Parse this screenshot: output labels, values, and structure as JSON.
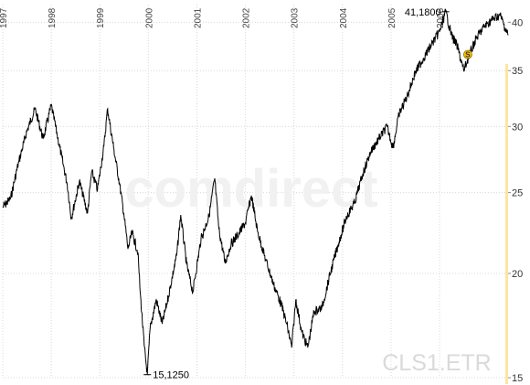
{
  "chart_data": {
    "type": "line",
    "title": "",
    "xlabel": "",
    "ylabel": "",
    "y_scale": "log",
    "ylim": [
      15,
      42
    ],
    "x_range": [
      "1997-01-01",
      "2007-05-31"
    ],
    "y_ticks": [
      15,
      20,
      25,
      30,
      35,
      40
    ],
    "x_tick_labels": [
      "1997",
      "1998",
      "1999",
      "2000",
      "2001",
      "2002",
      "2003",
      "2004",
      "2005",
      "2006"
    ],
    "grid": true,
    "series": [
      {
        "name": "",
        "color": "#000000",
        "points": [
          [
            "1997-01-01",
            24.0
          ],
          [
            "1997-03-01",
            24.6
          ],
          [
            "1997-05-01",
            27.2
          ],
          [
            "1997-07-01",
            29.6
          ],
          [
            "1997-09-01",
            31.5
          ],
          [
            "1997-11-01",
            29.0
          ],
          [
            "1998-01-01",
            31.8
          ],
          [
            "1998-02-15",
            29.3
          ],
          [
            "1998-04-01",
            27.0
          ],
          [
            "1998-05-01",
            25.6
          ],
          [
            "1998-06-01",
            23.3
          ],
          [
            "1998-08-01",
            25.8
          ],
          [
            "1998-10-01",
            23.6
          ],
          [
            "1998-11-01",
            26.5
          ],
          [
            "1998-12-15",
            25.2
          ],
          [
            "1999-02-01",
            28.4
          ],
          [
            "1999-03-01",
            31.5
          ],
          [
            "1999-04-15",
            28.3
          ],
          [
            "1999-06-01",
            25.5
          ],
          [
            "1999-07-01",
            23.6
          ],
          [
            "1999-08-01",
            21.4
          ],
          [
            "1999-09-01",
            22.4
          ],
          [
            "1999-10-15",
            21.2
          ],
          [
            "1999-11-01",
            19.0
          ],
          [
            "1999-12-01",
            16.4
          ],
          [
            "1999-12-25",
            15.125
          ],
          [
            "2000-01-15",
            17.2
          ],
          [
            "2000-03-01",
            18.6
          ],
          [
            "2000-04-15",
            17.4
          ],
          [
            "2000-06-01",
            18.8
          ],
          [
            "2000-08-01",
            21.0
          ],
          [
            "2000-09-01",
            23.5
          ],
          [
            "2000-10-15",
            20.5
          ],
          [
            "2000-12-01",
            19.0
          ],
          [
            "2001-02-01",
            22.0
          ],
          [
            "2001-04-01",
            23.4
          ],
          [
            "2001-05-15",
            26.0
          ],
          [
            "2001-06-15",
            22.6
          ],
          [
            "2001-08-01",
            20.6
          ],
          [
            "2001-09-15",
            21.7
          ],
          [
            "2001-11-01",
            22.2
          ],
          [
            "2002-01-01",
            23.0
          ],
          [
            "2002-02-15",
            24.8
          ],
          [
            "2002-04-01",
            22.5
          ],
          [
            "2002-06-01",
            20.8
          ],
          [
            "2002-08-01",
            19.4
          ],
          [
            "2002-10-01",
            18.3
          ],
          [
            "2002-11-15",
            17.2
          ],
          [
            "2002-12-15",
            16.3
          ],
          [
            "2003-01-15",
            18.6
          ],
          [
            "2003-03-01",
            17.0
          ],
          [
            "2003-04-15",
            16.3
          ],
          [
            "2003-06-01",
            18.0
          ],
          [
            "2003-08-01",
            18.2
          ],
          [
            "2003-10-01",
            20.0
          ],
          [
            "2003-12-01",
            21.7
          ],
          [
            "2004-02-01",
            23.4
          ],
          [
            "2004-04-01",
            24.3
          ],
          [
            "2004-06-01",
            26.3
          ],
          [
            "2004-08-01",
            28.0
          ],
          [
            "2004-10-01",
            29.0
          ],
          [
            "2004-12-01",
            30.0
          ],
          [
            "2005-01-15",
            28.3
          ],
          [
            "2005-03-01",
            31.0
          ],
          [
            "2005-05-01",
            32.6
          ],
          [
            "2005-07-01",
            34.8
          ],
          [
            "2005-09-01",
            36.2
          ],
          [
            "2005-11-01",
            37.6
          ],
          [
            "2006-01-01",
            39.0
          ],
          [
            "2006-02-15",
            41.18
          ],
          [
            "2006-04-01",
            38.6
          ],
          [
            "2006-05-15",
            37.4
          ],
          [
            "2006-07-01",
            35.0
          ],
          [
            "2006-08-15",
            36.6
          ],
          [
            "2006-10-01",
            38.2
          ],
          [
            "2006-12-01",
            39.5
          ],
          [
            "2007-02-01",
            40.3
          ],
          [
            "2007-04-01",
            40.8
          ],
          [
            "2007-05-31",
            38.6
          ]
        ]
      }
    ],
    "annotations": [
      {
        "text": "41,1800",
        "x": "2006-02-15",
        "y": 41.18
      },
      {
        "text": "15,1250",
        "x": "1999-12-25",
        "y": 15.125
      },
      {
        "text": "S",
        "x": "2006-08-01",
        "y": 36.6
      }
    ],
    "watermark": "comdirect",
    "ticker": "CLS1.ETR",
    "highlight_color": "#f5c200"
  }
}
